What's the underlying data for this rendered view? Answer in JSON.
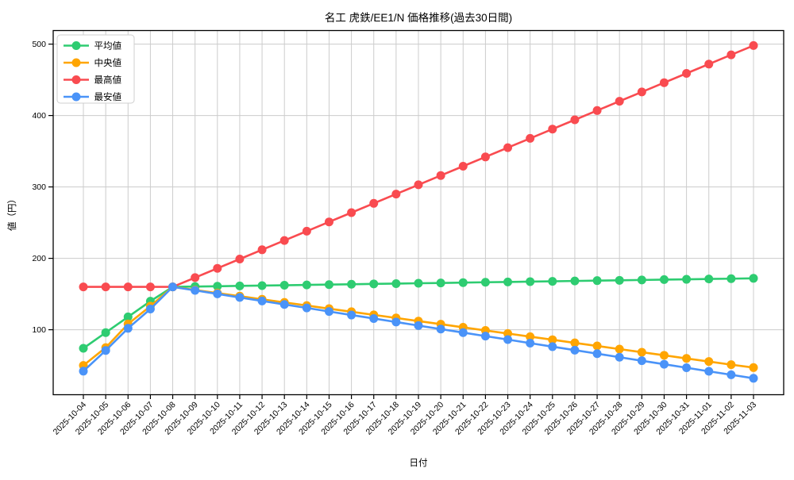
{
  "chart_data": {
    "type": "line",
    "title": "名工 虎鉄/EE1/N 価格推移(過去30日間)",
    "xlabel": "日付",
    "ylabel": "値（円）",
    "grid": true,
    "legend_position": "upper-left",
    "grid_color": "#cccccc",
    "axis_color": "#000000",
    "background_color": "#ffffff",
    "yticks": [
      100,
      200,
      300,
      400,
      500
    ],
    "ylim": [
      9,
      519
    ],
    "x": [
      "2025-10-04",
      "2025-10-05",
      "2025-10-06",
      "2025-10-07",
      "2025-10-08",
      "2025-10-09",
      "2025-10-10",
      "2025-10-11",
      "2025-10-12",
      "2025-10-13",
      "2025-10-14",
      "2025-10-15",
      "2025-10-16",
      "2025-10-17",
      "2025-10-18",
      "2025-10-19",
      "2025-10-20",
      "2025-10-21",
      "2025-10-22",
      "2025-10-23",
      "2025-10-24",
      "2025-10-25",
      "2025-10-26",
      "2025-10-27",
      "2025-10-28",
      "2025-10-29",
      "2025-10-30",
      "2025-10-31",
      "2025-11-01",
      "2025-11-02",
      "2025-11-03"
    ],
    "series": [
      {
        "key": "average",
        "name": "平均値",
        "color": "#2ECC71",
        "values": [
          74,
          96,
          118,
          140,
          160,
          160.5,
          160.9,
          161.4,
          161.8,
          162.3,
          162.8,
          163.2,
          163.7,
          164.2,
          164.6,
          165.1,
          165.5,
          166,
          166.5,
          166.9,
          167.4,
          167.8,
          168.3,
          168.8,
          169.2,
          169.7,
          170.2,
          170.6,
          171.1,
          171.5,
          172
        ]
      },
      {
        "key": "median",
        "name": "中央値",
        "color": "#FFA500",
        "values": [
          50,
          75,
          108,
          133,
          160,
          155.7,
          151.3,
          147,
          142.6,
          138.3,
          133.9,
          129.5,
          125.2,
          120.8,
          116.5,
          112.1,
          107.8,
          103.4,
          99,
          94.7,
          90.3,
          86,
          81.6,
          77.3,
          72.9,
          68.5,
          64.2,
          59.8,
          55.5,
          51.1,
          47
        ]
      },
      {
        "key": "max",
        "name": "最高値",
        "color": "#F94B50",
        "values": [
          160,
          160,
          160,
          160,
          160,
          173,
          186,
          199,
          212,
          225,
          238,
          251,
          264,
          277,
          290,
          303,
          316,
          329,
          342,
          355,
          368,
          381,
          394,
          407,
          420,
          433,
          446,
          459,
          472,
          485,
          498
        ]
      },
      {
        "key": "min",
        "name": "最安値",
        "color": "#4A93F8",
        "values": [
          42,
          71,
          102,
          129,
          160,
          155.1,
          150.2,
          145.2,
          140.3,
          135.4,
          130.5,
          125.5,
          120.6,
          115.7,
          110.8,
          105.8,
          100.9,
          96,
          91.1,
          86.2,
          81.2,
          76.3,
          71.4,
          66.5,
          61.5,
          56.6,
          51.7,
          46.8,
          41.8,
          36.9,
          32
        ]
      }
    ]
  }
}
